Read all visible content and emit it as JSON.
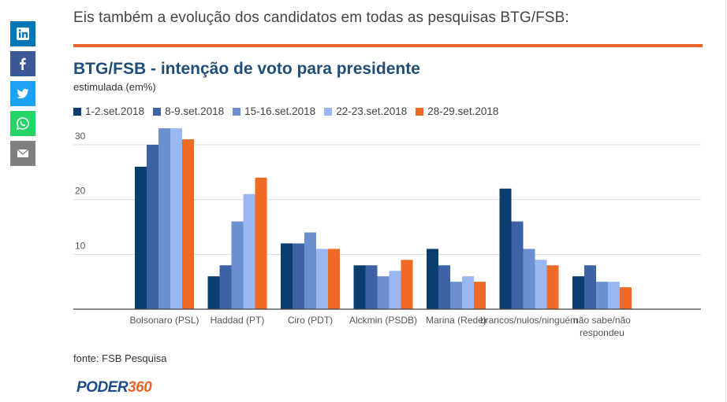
{
  "intro_text": "Eis também a evolução dos candidatos em todas as pesquisas BTG/FSB:",
  "social": [
    {
      "name": "linkedin",
      "icon": "linkedin-icon",
      "color": "#0077b5"
    },
    {
      "name": "facebook",
      "icon": "facebook-icon",
      "color": "#3b5998"
    },
    {
      "name": "twitter",
      "icon": "twitter-icon",
      "color": "#1da1f2"
    },
    {
      "name": "whatsapp",
      "icon": "whatsapp-icon",
      "color": "#25d366"
    },
    {
      "name": "email",
      "icon": "email-icon",
      "color": "#7f7f7f"
    }
  ],
  "colors": {
    "accent": "#e8642c",
    "title": "#1f4e79",
    "series": [
      "#0b3d6e",
      "#3d63a6",
      "#6b8fcf",
      "#99b8f2",
      "#ee6a25"
    ]
  },
  "chart_data": {
    "type": "bar",
    "title": "BTG/FSB - intenção de voto para presidente",
    "subtitle": "estimulada (em%)",
    "xlabel": "",
    "ylabel": "",
    "ylim": [
      0,
      32
    ],
    "yticks": [
      10,
      20,
      30
    ],
    "grid": true,
    "legend_position": "top-left",
    "categories": [
      "Bolsonaro (PSL)",
      "Haddad (PT)",
      "Ciro (PDT)",
      "Alckmin (PSDB)",
      "Marina (Rede)",
      "brancos/nulos/ninguém",
      "não sabe/não respondeu"
    ],
    "category_lines": [
      [
        "Bolsonaro (PSL)"
      ],
      [
        "Haddad (PT)"
      ],
      [
        "Ciro (PDT)"
      ],
      [
        "Alckmin (PSDB)"
      ],
      [
        "Marina (Rede)"
      ],
      [
        "brancos/nulos/ninguém"
      ],
      [
        "não sabe/não",
        "respondeu"
      ]
    ],
    "series": [
      {
        "name": "1-2.set.2018",
        "values": [
          26,
          6,
          12,
          8,
          11,
          22,
          6
        ]
      },
      {
        "name": "8-9.set.2018",
        "values": [
          30,
          8,
          12,
          8,
          8,
          16,
          8
        ]
      },
      {
        "name": "15-16.set.2018",
        "values": [
          33,
          16,
          14,
          6,
          5,
          11,
          5
        ]
      },
      {
        "name": "22-23.set.2018",
        "values": [
          33,
          21,
          11,
          7,
          6,
          9,
          5
        ]
      },
      {
        "name": "28-29.set.2018",
        "values": [
          31,
          24,
          11,
          9,
          5,
          8,
          4
        ]
      }
    ]
  },
  "source": "fonte: FSB Pesquisa",
  "brand": {
    "part1": "PODER",
    "part2": "360"
  }
}
